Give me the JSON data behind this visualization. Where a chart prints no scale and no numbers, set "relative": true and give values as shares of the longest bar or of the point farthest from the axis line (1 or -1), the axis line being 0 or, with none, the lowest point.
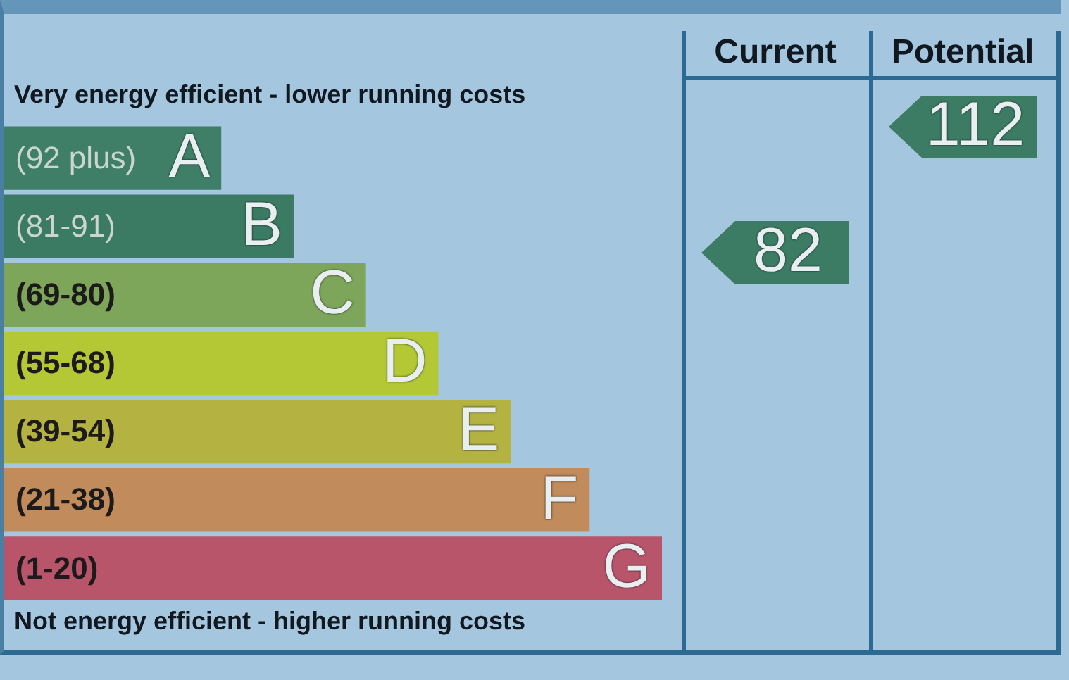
{
  "chart_data": {
    "type": "bar",
    "orientation": "horizontal",
    "relative": true,
    "categories": [
      "(92 plus)",
      "(81-91)",
      "(69-80)",
      "(55-68)",
      "(39-54)",
      "(21-38)",
      "(1-20)"
    ],
    "values": [
      0.33,
      0.44,
      0.55,
      0.66,
      0.77,
      0.89,
      1
    ],
    "colors": [
      "#3f7f67",
      "#3b7a63",
      "#7ea65a",
      "#b3c834",
      "#b4b341",
      "#c28b5b",
      "#b9556b"
    ],
    "annotations": [
      "Very energy efficient - lower running costs",
      "Not energy efficient - higher running costs",
      "Current",
      "Potential",
      "82",
      "112",
      {
        "text": "A",
        "x": 0.33,
        "y": "(92 plus)"
      },
      {
        "text": "B",
        "x": 0.44,
        "y": "(81-91)"
      },
      {
        "text": "C",
        "x": 0.55,
        "y": "(69-80)"
      },
      {
        "text": "D",
        "x": 0.66,
        "y": "(55-68)"
      },
      {
        "text": "E",
        "x": 0.77,
        "y": "(39-54)"
      },
      {
        "text": "F",
        "x": 0.89,
        "y": "(21-38)"
      },
      {
        "text": "G",
        "x": 1,
        "y": "(1-20)"
      }
    ]
  }
}
